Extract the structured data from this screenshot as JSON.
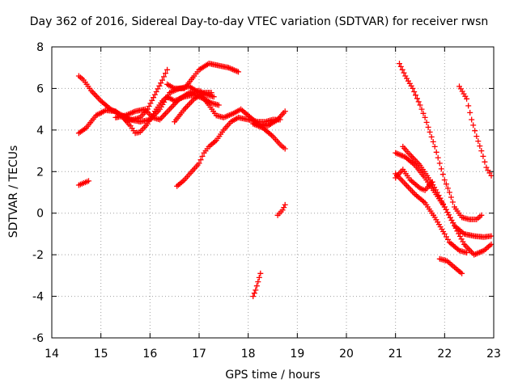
{
  "chart_data": {
    "type": "scatter",
    "title": "Day 362 of 2016, Sidereal Day-to-day VTEC variation (SDTVAR) for receiver rwsn",
    "xlabel": "GPS time / hours",
    "ylabel": "SDTVAR / TECUs",
    "xlim": [
      14,
      23
    ],
    "ylim": [
      -6,
      8
    ],
    "xticks": [
      "14",
      "15",
      "16",
      "17",
      "18",
      "19",
      "20",
      "21",
      "22",
      "23"
    ],
    "yticks": [
      "-6",
      "-4",
      "-2",
      "0",
      "2",
      "4",
      "6",
      "8"
    ],
    "grid": true,
    "marker": "plus",
    "color": "#ff0000",
    "series": [
      {
        "name": "s1",
        "points": [
          [
            14.55,
            6.6
          ],
          [
            14.65,
            6.4
          ],
          [
            14.8,
            5.9
          ],
          [
            15.0,
            5.4
          ],
          [
            15.2,
            5.0
          ],
          [
            15.4,
            4.75
          ],
          [
            15.6,
            4.5
          ],
          [
            15.8,
            4.4
          ],
          [
            16.0,
            4.5
          ],
          [
            16.2,
            5.0
          ],
          [
            16.4,
            5.8
          ],
          [
            16.6,
            6.0
          ],
          [
            16.8,
            6.1
          ],
          [
            17.0,
            5.8
          ],
          [
            17.2,
            5.2
          ],
          [
            17.35,
            4.7
          ],
          [
            17.5,
            4.6
          ],
          [
            17.7,
            4.8
          ],
          [
            17.85,
            5.0
          ],
          [
            18.0,
            4.7
          ],
          [
            18.2,
            4.3
          ],
          [
            18.4,
            4.2
          ],
          [
            18.6,
            4.5
          ],
          [
            18.75,
            4.9
          ]
        ]
      },
      {
        "name": "s2",
        "points": [
          [
            14.55,
            3.85
          ],
          [
            14.7,
            4.1
          ],
          [
            14.9,
            4.7
          ],
          [
            15.1,
            4.95
          ],
          [
            15.3,
            4.9
          ],
          [
            15.45,
            4.6
          ],
          [
            15.6,
            4.2
          ],
          [
            15.7,
            3.85
          ],
          [
            15.8,
            3.9
          ],
          [
            15.95,
            4.3
          ],
          [
            16.1,
            4.9
          ],
          [
            16.25,
            5.4
          ],
          [
            16.35,
            5.6
          ],
          [
            16.5,
            5.4
          ],
          [
            16.7,
            5.6
          ],
          [
            16.9,
            5.7
          ],
          [
            17.1,
            5.5
          ],
          [
            17.25,
            5.3
          ],
          [
            17.4,
            5.2
          ]
        ]
      },
      {
        "name": "s3",
        "points": [
          [
            15.5,
            4.5
          ],
          [
            15.65,
            4.5
          ],
          [
            15.8,
            4.6
          ],
          [
            15.95,
            5.0
          ],
          [
            16.1,
            5.7
          ],
          [
            16.25,
            6.4
          ],
          [
            16.35,
            6.9
          ]
        ]
      },
      {
        "name": "s4",
        "points": [
          [
            15.3,
            4.6
          ],
          [
            15.5,
            4.7
          ],
          [
            15.7,
            4.9
          ],
          [
            15.9,
            5.0
          ],
          [
            16.05,
            4.6
          ],
          [
            16.2,
            4.5
          ],
          [
            16.4,
            5.0
          ],
          [
            16.6,
            5.5
          ],
          [
            16.8,
            5.8
          ],
          [
            17.0,
            5.9
          ],
          [
            17.15,
            5.7
          ],
          [
            17.3,
            5.6
          ]
        ]
      },
      {
        "name": "s5",
        "points": [
          [
            16.35,
            6.2
          ],
          [
            16.5,
            6.0
          ],
          [
            16.7,
            6.0
          ],
          [
            16.9,
            6.6
          ],
          [
            17.0,
            6.9
          ],
          [
            17.2,
            7.2
          ],
          [
            17.4,
            7.1
          ],
          [
            17.6,
            7.0
          ],
          [
            17.8,
            6.8
          ]
        ]
      },
      {
        "name": "s6",
        "points": [
          [
            16.5,
            4.4
          ],
          [
            16.7,
            5.0
          ],
          [
            16.9,
            5.5
          ],
          [
            17.1,
            5.8
          ],
          [
            17.25,
            5.8
          ]
        ]
      },
      {
        "name": "s7",
        "points": [
          [
            16.55,
            1.3
          ],
          [
            16.7,
            1.6
          ],
          [
            16.85,
            2.0
          ],
          [
            17.0,
            2.4
          ],
          [
            17.1,
            2.9
          ],
          [
            17.2,
            3.2
          ],
          [
            17.35,
            3.5
          ],
          [
            17.5,
            4.0
          ],
          [
            17.65,
            4.4
          ],
          [
            17.8,
            4.6
          ],
          [
            18.0,
            4.5
          ],
          [
            18.2,
            4.4
          ],
          [
            18.35,
            4.4
          ],
          [
            18.5,
            4.5
          ],
          [
            18.65,
            4.5
          ]
        ]
      },
      {
        "name": "s8",
        "points": [
          [
            18.1,
            4.3
          ],
          [
            18.3,
            4.1
          ],
          [
            18.5,
            3.7
          ],
          [
            18.65,
            3.3
          ],
          [
            18.75,
            3.1
          ]
        ]
      },
      {
        "name": "s9",
        "points": [
          [
            14.55,
            1.35
          ],
          [
            14.65,
            1.45
          ],
          [
            14.75,
            1.55
          ]
        ]
      },
      {
        "name": "s10",
        "points": [
          [
            18.6,
            -0.1
          ],
          [
            18.7,
            0.15
          ],
          [
            18.75,
            0.4
          ]
        ]
      },
      {
        "name": "s11",
        "points": [
          [
            18.1,
            -4.0
          ],
          [
            18.15,
            -3.7
          ],
          [
            18.2,
            -3.3
          ],
          [
            18.25,
            -2.9
          ]
        ]
      },
      {
        "name": "s12",
        "points": [
          [
            21.08,
            7.2
          ],
          [
            21.2,
            6.6
          ],
          [
            21.35,
            6.0
          ],
          [
            21.5,
            5.2
          ],
          [
            21.6,
            4.6
          ],
          [
            21.7,
            3.9
          ],
          [
            21.8,
            3.2
          ],
          [
            21.9,
            2.4
          ],
          [
            22.0,
            1.6
          ],
          [
            22.1,
            1.0
          ],
          [
            22.2,
            0.3
          ],
          [
            22.35,
            -0.2
          ],
          [
            22.5,
            -0.3
          ],
          [
            22.65,
            -0.3
          ],
          [
            22.75,
            -0.1
          ]
        ]
      },
      {
        "name": "s13",
        "points": [
          [
            21.0,
            2.9
          ],
          [
            21.2,
            2.7
          ],
          [
            21.4,
            2.3
          ],
          [
            21.6,
            1.7
          ],
          [
            21.8,
            1.0
          ],
          [
            22.0,
            0.3
          ],
          [
            22.2,
            -0.6
          ],
          [
            22.4,
            -1.0
          ],
          [
            22.6,
            -1.1
          ],
          [
            22.8,
            -1.15
          ],
          [
            22.95,
            -1.1
          ]
        ]
      },
      {
        "name": "s14",
        "points": [
          [
            21.15,
            3.2
          ],
          [
            21.3,
            2.8
          ],
          [
            21.5,
            2.3
          ],
          [
            21.7,
            1.6
          ],
          [
            21.85,
            1.0
          ],
          [
            22.0,
            0.3
          ],
          [
            22.2,
            -0.6
          ],
          [
            22.4,
            -1.5
          ],
          [
            22.6,
            -2.0
          ],
          [
            22.8,
            -1.8
          ],
          [
            22.95,
            -1.5
          ]
        ]
      },
      {
        "name": "s15",
        "points": [
          [
            21.0,
            1.7
          ],
          [
            21.15,
            2.1
          ],
          [
            21.3,
            1.6
          ],
          [
            21.5,
            1.2
          ],
          [
            21.6,
            1.1
          ],
          [
            21.75,
            1.5
          ]
        ]
      },
      {
        "name": "s16",
        "points": [
          [
            21.0,
            1.9
          ],
          [
            21.2,
            1.4
          ],
          [
            21.4,
            0.9
          ],
          [
            21.6,
            0.5
          ],
          [
            21.8,
            -0.2
          ],
          [
            22.0,
            -1.0
          ],
          [
            22.1,
            -1.4
          ],
          [
            22.3,
            -1.8
          ],
          [
            22.45,
            -1.9
          ]
        ]
      },
      {
        "name": "s17",
        "points": [
          [
            21.9,
            -2.2
          ],
          [
            22.05,
            -2.3
          ],
          [
            22.2,
            -2.6
          ],
          [
            22.35,
            -2.9
          ]
        ]
      },
      {
        "name": "s18",
        "points": [
          [
            22.3,
            6.1
          ],
          [
            22.45,
            5.5
          ],
          [
            22.55,
            4.5
          ],
          [
            22.65,
            3.7
          ],
          [
            22.75,
            3.0
          ],
          [
            22.85,
            2.2
          ],
          [
            22.95,
            1.8
          ]
        ]
      }
    ]
  }
}
